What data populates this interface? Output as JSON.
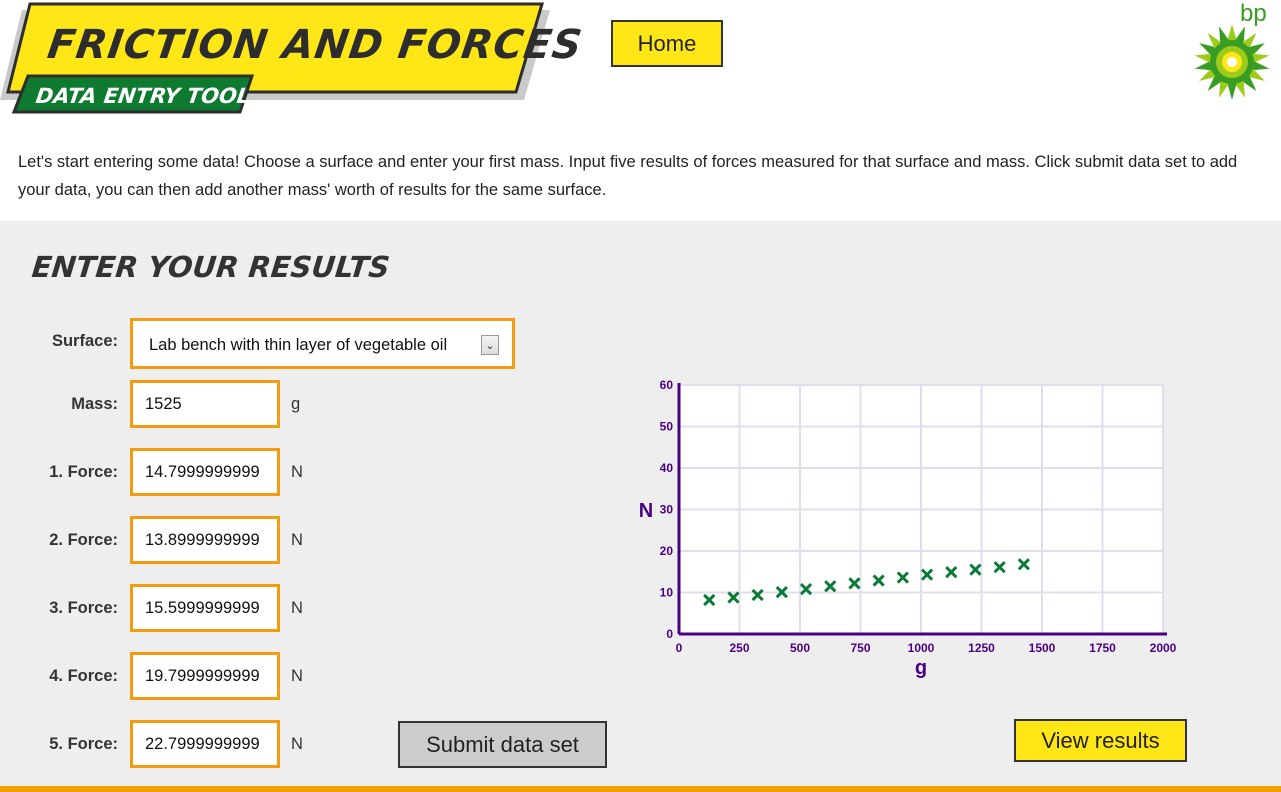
{
  "header": {
    "title": "FRICTION AND FORCES",
    "subtitle": "DATA ENTRY TOOL",
    "home_label": "Home",
    "logo_text": "bp"
  },
  "intro": "Let's start entering some data! Choose a surface and enter your first mass. Input five results of forces measured for that surface and mass. Click submit data set to add your data, you can then add another mass' worth of results for the same surface.",
  "form": {
    "heading": "ENTER YOUR RESULTS",
    "surface_label": "Surface:",
    "surface_value": "Lab bench with thin layer of vegetable oil",
    "mass_label": "Mass:",
    "mass_value": "1525",
    "mass_unit": "g",
    "forces": [
      {
        "label": "1. Force:",
        "value": "14.7999999999",
        "unit": "N"
      },
      {
        "label": "2. Force:",
        "value": "13.8999999999",
        "unit": "N"
      },
      {
        "label": "3. Force:",
        "value": "15.5999999999",
        "unit": "N"
      },
      {
        "label": "4. Force:",
        "value": "19.7999999999",
        "unit": "N"
      },
      {
        "label": "5. Force:",
        "value": "22.7999999999",
        "unit": "N"
      }
    ],
    "submit_label": "Submit data set"
  },
  "view_results_label": "View results",
  "colors": {
    "accent_yellow": "#ffe617",
    "field_border": "#f39c12",
    "banner_green": "#0d7a2f",
    "axis_purple": "#4b0082",
    "point_green": "#0b7a37"
  },
  "chart_data": {
    "type": "scatter",
    "xlabel": "g",
    "ylabel": "N",
    "xlim": [
      0,
      2000
    ],
    "ylim": [
      0,
      60
    ],
    "x_ticks": [
      0,
      250,
      500,
      750,
      1000,
      1250,
      1500,
      1750,
      2000
    ],
    "y_ticks": [
      0,
      10,
      20,
      30,
      40,
      50,
      60
    ],
    "grid": true,
    "marker": "x",
    "series": [
      {
        "x": [
          125,
          225,
          325,
          425,
          525,
          625,
          725,
          825,
          925,
          1025,
          1125,
          1225,
          1325,
          1425
        ],
        "y": [
          8.2,
          8.8,
          9.4,
          10.1,
          10.8,
          11.5,
          12.2,
          12.9,
          13.6,
          14.3,
          14.9,
          15.5,
          16.1,
          16.8
        ]
      }
    ]
  }
}
